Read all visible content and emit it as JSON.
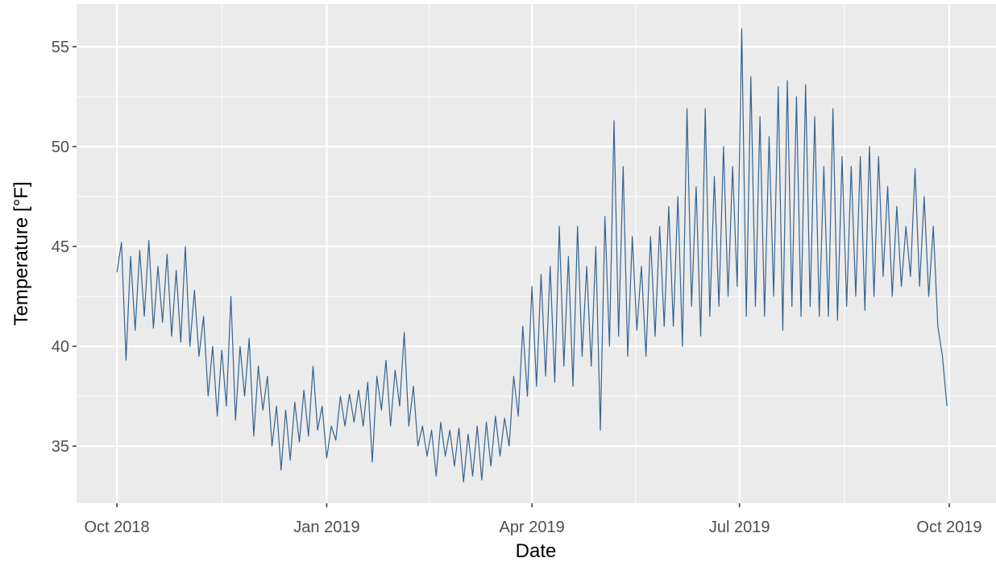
{
  "chart_data": {
    "type": "line",
    "x_label": "Date",
    "y_label": "Temperature [°F]",
    "xlim": [
      -17.7,
      385.5
    ],
    "ylim": [
      32.14,
      57.14
    ],
    "xticks": [
      {
        "value": 0,
        "label": "Oct 2018"
      },
      {
        "value": 92,
        "label": "Jan 2019"
      },
      {
        "value": 182,
        "label": "Apr 2019"
      },
      {
        "value": 273,
        "label": "Jul 2019"
      },
      {
        "value": 365,
        "label": "Oct 2019"
      }
    ],
    "yticks": [
      35,
      40,
      45,
      50,
      55
    ],
    "grid": true,
    "series": [
      {
        "color": "#35638f",
        "x": [
          0,
          2,
          4,
          6,
          8,
          10,
          12,
          14,
          16,
          18,
          20,
          22,
          24,
          26,
          28,
          30,
          32,
          34,
          36,
          38,
          40,
          42,
          44,
          46,
          48,
          50,
          52,
          54,
          56,
          58,
          60,
          62,
          64,
          66,
          68,
          70,
          72,
          74,
          76,
          78,
          80,
          82,
          84,
          86,
          88,
          90,
          92,
          94,
          96,
          98,
          100,
          102,
          104,
          106,
          108,
          110,
          112,
          114,
          116,
          118,
          120,
          122,
          124,
          126,
          128,
          130,
          132,
          134,
          136,
          138,
          140,
          142,
          144,
          146,
          148,
          150,
          152,
          154,
          156,
          158,
          160,
          162,
          164,
          166,
          168,
          170,
          172,
          174,
          176,
          178,
          180,
          182,
          184,
          186,
          188,
          190,
          192,
          194,
          196,
          198,
          200,
          202,
          204,
          206,
          208,
          210,
          212,
          214,
          216,
          218,
          220,
          222,
          224,
          226,
          228,
          230,
          232,
          234,
          236,
          238,
          240,
          242,
          244,
          246,
          248,
          250,
          252,
          254,
          256,
          258,
          260,
          262,
          264,
          266,
          268,
          270,
          272,
          274,
          276,
          278,
          280,
          282,
          284,
          286,
          288,
          290,
          292,
          294,
          296,
          298,
          300,
          302,
          304,
          306,
          308,
          310,
          312,
          314,
          316,
          318,
          320,
          322,
          324,
          326,
          328,
          330,
          332,
          334,
          336,
          338,
          340,
          342,
          344,
          346,
          348,
          350,
          352,
          354,
          356,
          358,
          360,
          362,
          364
        ],
        "values": [
          43.7,
          45.2,
          39.3,
          44.5,
          40.8,
          44.8,
          41.5,
          45.3,
          40.9,
          44.0,
          41.2,
          44.6,
          40.5,
          43.8,
          40.2,
          45.0,
          40.0,
          42.8,
          39.5,
          41.5,
          37.5,
          40.0,
          36.5,
          39.8,
          37.0,
          42.5,
          36.3,
          40.0,
          37.5,
          40.4,
          35.5,
          39.0,
          36.8,
          38.5,
          35.0,
          37.0,
          33.8,
          36.8,
          34.3,
          37.2,
          35.2,
          37.8,
          35.5,
          39.0,
          35.8,
          37.0,
          34.4,
          36.0,
          35.3,
          37.5,
          36.0,
          37.6,
          36.2,
          37.8,
          36.0,
          38.2,
          34.2,
          38.5,
          36.8,
          39.3,
          36.0,
          38.8,
          37.0,
          40.7,
          36.0,
          38.0,
          35.0,
          36.0,
          34.5,
          35.8,
          33.5,
          36.2,
          34.5,
          35.8,
          34.0,
          35.9,
          33.2,
          35.6,
          33.5,
          36.0,
          33.3,
          36.2,
          34.0,
          36.5,
          34.5,
          36.4,
          35.0,
          38.5,
          36.5,
          41.0,
          37.5,
          43.0,
          38.0,
          43.6,
          38.5,
          44.0,
          38.2,
          46.0,
          39.0,
          44.5,
          38.0,
          46.0,
          39.5,
          44.0,
          39.0,
          45.0,
          35.8,
          46.5,
          40.0,
          51.3,
          40.5,
          49.0,
          39.5,
          45.5,
          40.8,
          44.0,
          39.5,
          45.5,
          40.5,
          46.0,
          41.0,
          47.0,
          41.0,
          47.5,
          40.0,
          51.9,
          42.0,
          48.0,
          40.5,
          51.9,
          41.5,
          48.5,
          42.0,
          50.0,
          42.5,
          49.0,
          43.0,
          55.9,
          41.5,
          53.5,
          42.0,
          51.5,
          41.5,
          50.5,
          42.5,
          53.0,
          40.8,
          53.3,
          42.0,
          52.5,
          41.5,
          53.1,
          42.0,
          51.5,
          41.5,
          49.0,
          41.5,
          51.9,
          41.3,
          49.5,
          42.0,
          49.0,
          42.5,
          49.5,
          41.8,
          50.0,
          42.5,
          49.5,
          43.5,
          48.0,
          42.5,
          47.0,
          43.0,
          46.0,
          43.5,
          48.9,
          43.0,
          47.5,
          42.5,
          46.0,
          41.0,
          39.5,
          37.0
        ]
      }
    ]
  }
}
